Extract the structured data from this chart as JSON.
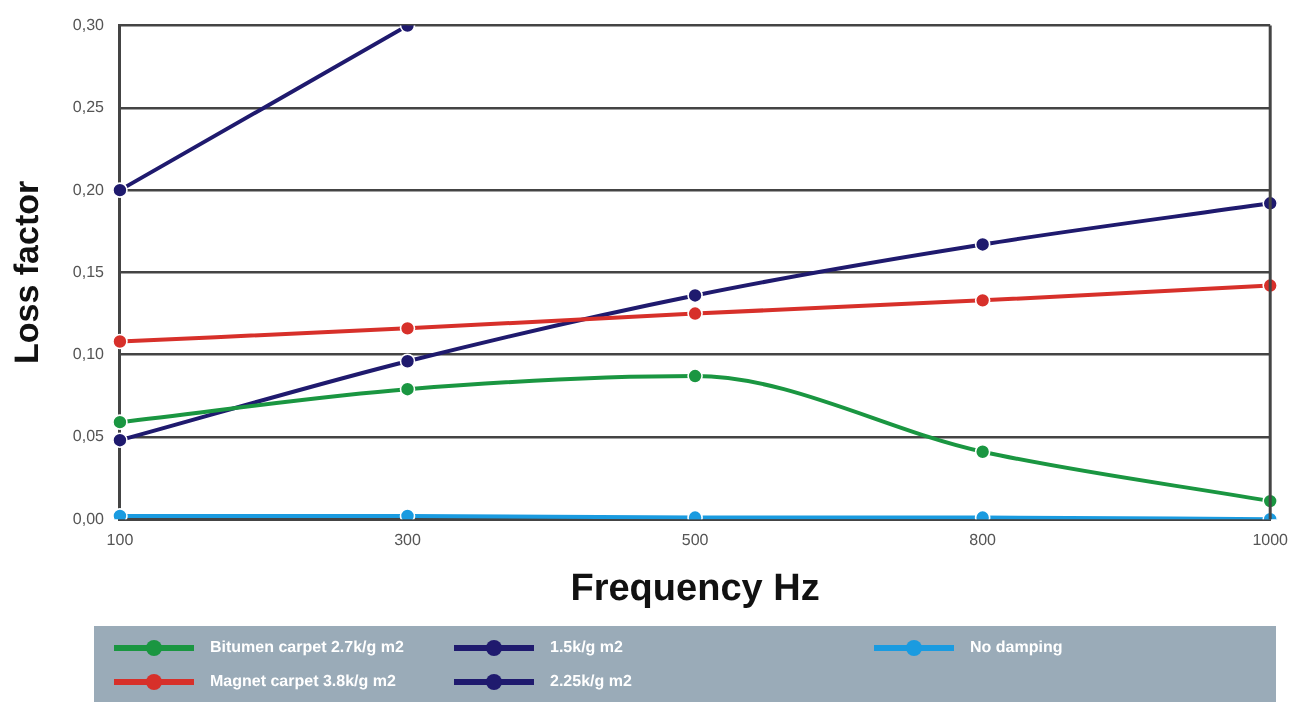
{
  "chart_data": {
    "type": "line",
    "xlabel": "Frequency Hz",
    "ylabel": "Loss factor",
    "categories": [
      "100",
      "300",
      "500",
      "800",
      "1000"
    ],
    "series": [
      {
        "name": "Bitumen carpet 2.7k/g m2",
        "color": "#1a9641",
        "values": [
          0.059,
          0.079,
          0.087,
          0.041,
          0.011
        ]
      },
      {
        "name": "Magnet carpet 3.8k/g m2",
        "color": "#d7302a",
        "values": [
          0.108,
          0.116,
          0.125,
          0.133,
          0.142
        ]
      },
      {
        "name": "1.5k/g m2",
        "color": "#1f1a6e",
        "values": [
          0.048,
          0.096,
          0.136,
          0.167,
          0.192
        ]
      },
      {
        "name": "2.25k/g m2",
        "color": "#1f1a6e",
        "values": [
          0.2,
          0.3,
          null,
          null,
          null
        ]
      },
      {
        "name": "No damping",
        "color": "#1a9be0",
        "values": [
          0.002,
          0.002,
          0.001,
          0.001,
          0.0
        ]
      }
    ],
    "ylim": [
      0,
      0.3
    ],
    "yticks": [
      {
        "value": 0,
        "label": "0,00"
      },
      {
        "value": 0.05,
        "label": "0,05"
      },
      {
        "value": 0.1,
        "label": "0,10"
      },
      {
        "value": 0.15,
        "label": "0,15"
      },
      {
        "value": 0.2,
        "label": "0,20"
      },
      {
        "value": 0.25,
        "label": "0,25"
      },
      {
        "value": 0.3,
        "label": "0,30"
      }
    ],
    "grid": "y",
    "legend": "bottom",
    "marker": "circle",
    "line_style": "solid"
  }
}
